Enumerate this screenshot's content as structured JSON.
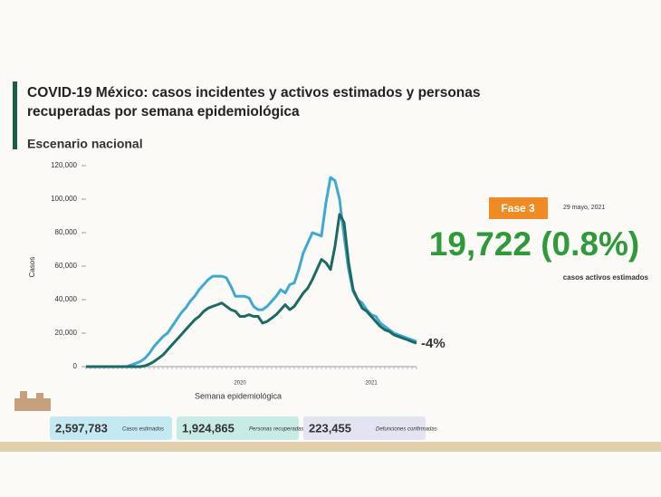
{
  "chart_data": {
    "type": "line",
    "title": "COVID-19 México: casos incidentes y activos estimados y personas recuperadas por semana epidemiológica",
    "subtitle": "Escenario nacional",
    "y_label": "Casos",
    "x_label": "Semana epidemiológica",
    "annotation": "-4%",
    "categories": [
      null,
      null,
      null,
      null,
      null,
      null,
      null,
      null,
      null,
      null,
      null,
      null,
      null,
      null,
      null,
      null,
      null,
      null,
      null,
      null,
      null,
      null,
      null,
      null,
      null,
      null,
      null,
      null,
      null,
      null,
      null,
      null,
      null,
      null,
      "2020",
      null,
      null,
      null,
      null,
      null,
      null,
      null,
      null,
      null,
      null,
      null,
      null,
      null,
      null,
      null,
      null,
      null,
      null,
      null,
      null,
      null,
      null,
      null,
      null,
      null,
      null,
      null,
      null,
      "2021",
      null,
      null,
      null,
      null,
      null,
      null,
      null,
      null,
      null,
      null
    ],
    "series": [
      {
        "color": "#3fa9d6",
        "values": [
          0,
          0,
          0,
          0,
          0,
          0,
          0,
          0,
          0,
          0,
          1000,
          2000,
          3000,
          5000,
          8000,
          12000,
          15000,
          18000,
          20000,
          24000,
          28000,
          32000,
          35000,
          39000,
          42000,
          46000,
          49000,
          52000,
          54000,
          54000,
          54000,
          53000,
          48000,
          42000,
          42000,
          42000,
          41000,
          36000,
          34000,
          34000,
          36000,
          39000,
          42000,
          46000,
          44000,
          49000,
          50000,
          58000,
          68000,
          74000,
          80000,
          79000,
          78000,
          98000,
          113000,
          111000,
          100000,
          78000,
          58000,
          45000,
          40000,
          38000,
          34000,
          31000,
          30000,
          26000,
          24000,
          22000,
          20000,
          19000,
          18000,
          17000,
          16000,
          15000
        ]
      },
      {
        "color": "#1b6b62",
        "values": [
          0,
          0,
          0,
          0,
          0,
          0,
          0,
          0,
          0,
          0,
          0,
          0,
          0,
          500,
          1500,
          3000,
          5000,
          7000,
          10000,
          13000,
          16000,
          19000,
          22000,
          25000,
          28000,
          30000,
          33000,
          35000,
          36000,
          37000,
          38000,
          36000,
          34000,
          33000,
          30000,
          30000,
          31000,
          30000,
          30000,
          26000,
          27000,
          29000,
          31000,
          34000,
          37000,
          34000,
          36000,
          40000,
          44000,
          47000,
          52000,
          58000,
          64000,
          62000,
          58000,
          72000,
          91000,
          86000,
          62000,
          46000,
          40000,
          35000,
          33000,
          30000,
          27000,
          24000,
          22000,
          21000,
          19000,
          18000,
          17000,
          16000,
          15000,
          14000
        ]
      }
    ],
    "ylim": [
      0,
      120000
    ],
    "yticks": [
      0,
      {
        "value": 20000,
        "label": "20,000"
      },
      {
        "value": 40000,
        "label": "40,000"
      },
      {
        "value": 60000,
        "label": "60,000"
      },
      {
        "value": 80000,
        "label": "80,000"
      },
      {
        "value": 100000,
        "label": "100,000"
      },
      {
        "value": 120000,
        "label": "120,000"
      }
    ]
  },
  "side": {
    "phase": "Fase 3",
    "date": "29 mayo, 2021",
    "active": "19,722 (0.8%)",
    "active_label": "casos activos estimados"
  },
  "boxes": [
    {
      "value": "2,597,783",
      "label": "Casos estimados",
      "color": "#c4e9f2"
    },
    {
      "value": "1,924,865",
      "label": "Personas recuperadas",
      "color": "#c9ebe6"
    },
    {
      "value": "223,455",
      "label": "Defunciones confirmadas",
      "color": "#e3e3f2"
    }
  ]
}
